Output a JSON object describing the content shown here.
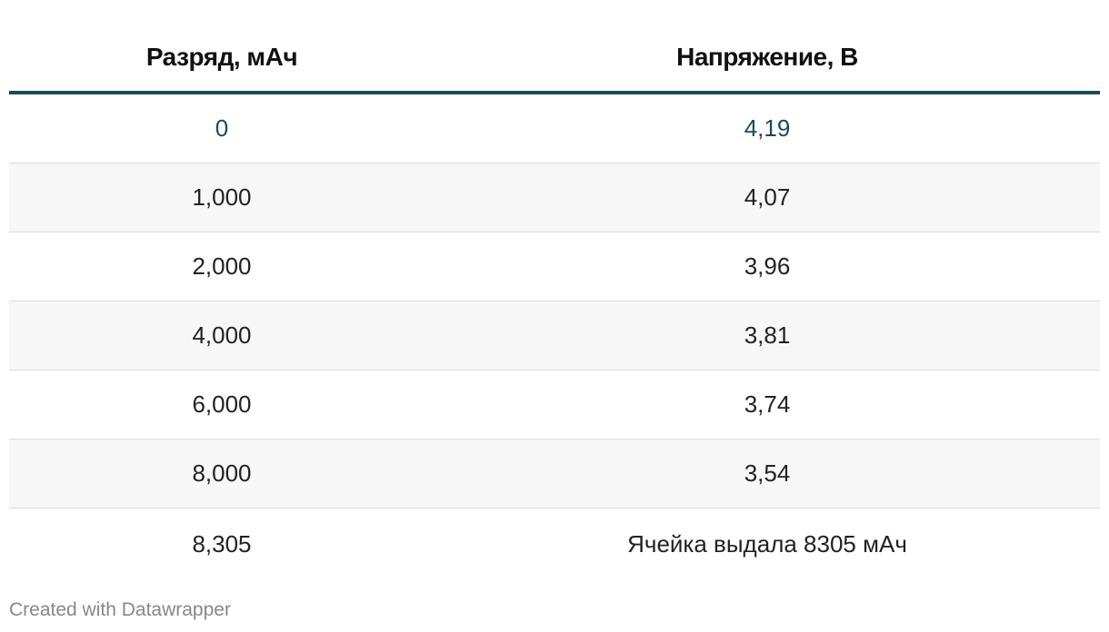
{
  "table": {
    "header": [
      "Разряд, мАч",
      "Напряжение, В"
    ],
    "rows": [
      [
        "0",
        "4,19"
      ],
      [
        "1,000",
        "4,07"
      ],
      [
        "2,000",
        "3,96"
      ],
      [
        "4,000",
        "3,81"
      ],
      [
        "6,000",
        "3,74"
      ],
      [
        "8,000",
        "3,54"
      ],
      [
        "8,305",
        "Ячейка выдала 8305 мАч"
      ]
    ]
  },
  "footer": "Created with Datawrapper"
}
